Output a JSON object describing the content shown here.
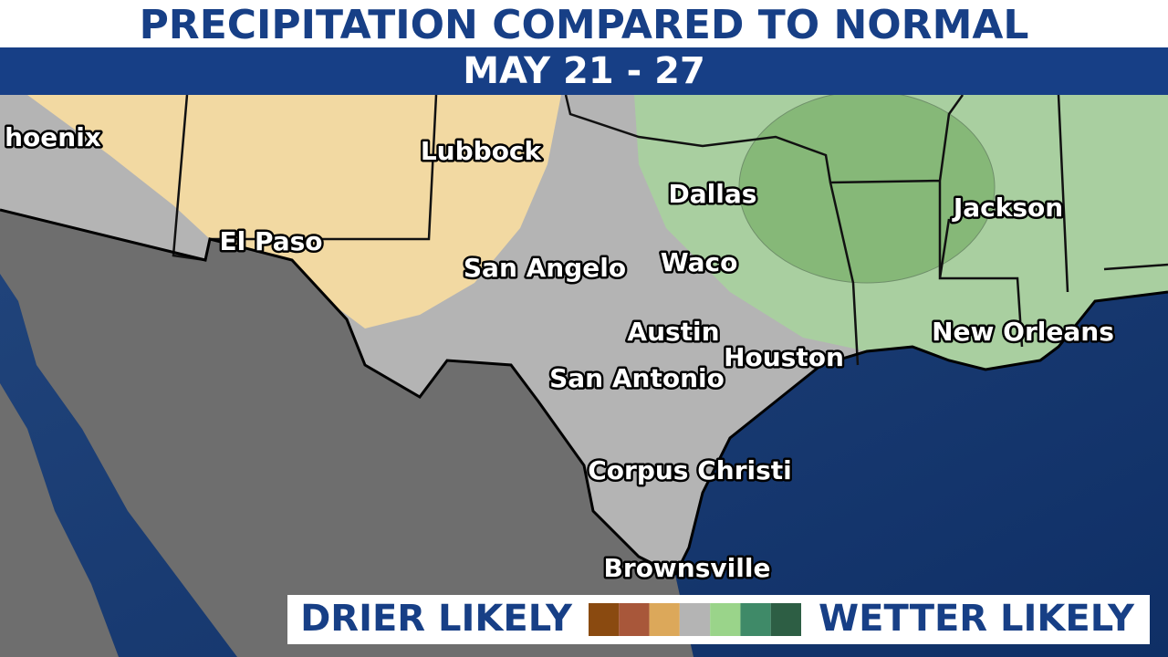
{
  "header": {
    "title": "PRECIPITATION COMPARED TO NORMAL",
    "subtitle": "MAY 21 - 27"
  },
  "cities": [
    "hoenix",
    "Lubbock",
    "El Paso",
    "Dallas",
    "Jackson",
    "San Angelo",
    "Waco",
    "Austin",
    "Houston",
    "New Orleans",
    "San Antonio",
    "Corpus Christi",
    "Brownsville"
  ],
  "legend": {
    "left": "DRIER LIKELY",
    "right": "WETTER LIKELY",
    "colors": [
      "#8a4a10",
      "#a8573a",
      "#dca85a",
      "#b4b4b4",
      "#9ad48a",
      "#3f8a68",
      "#2d5e44"
    ]
  }
}
